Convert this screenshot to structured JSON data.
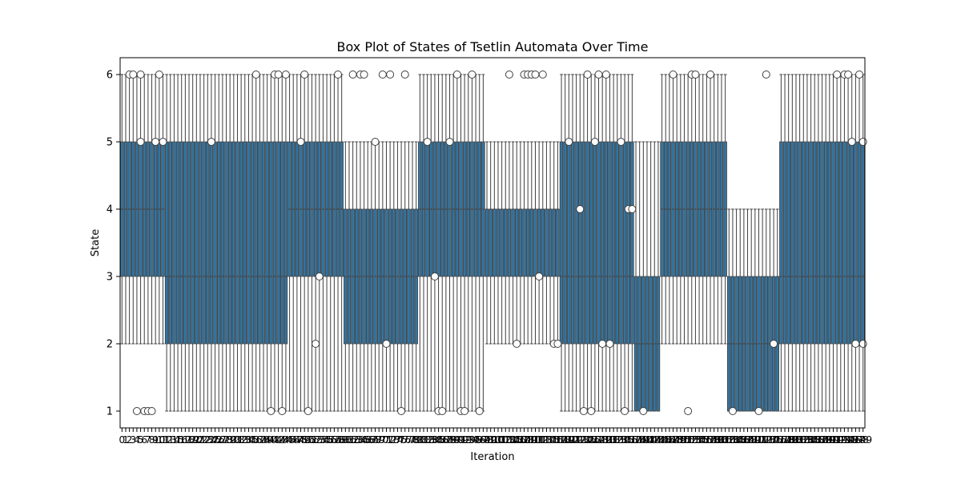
{
  "chart_data": {
    "type": "box",
    "title": "Box Plot of States of Tsetlin Automata Over Time",
    "xlabel": "Iteration",
    "ylabel": "State",
    "ylim": [
      0.75,
      6.25
    ],
    "yticks": [
      1,
      2,
      3,
      4,
      5,
      6
    ],
    "xticks_note": "one tick per iteration, labels 0..199 overprinted",
    "grid": false,
    "colors": {
      "box_fill": "#3274a1",
      "edge": "#3f3f3f",
      "outlier_fill": "#ffffff"
    },
    "box_segments": [
      {
        "from": 0,
        "to": 12,
        "q1": 3,
        "med": 4,
        "q3": 5,
        "lo": 2,
        "hi": 6
      },
      {
        "from": 12,
        "to": 45,
        "q1": 2,
        "med": 3,
        "q3": 5,
        "lo": 1,
        "hi": 6
      },
      {
        "from": 45,
        "to": 60,
        "q1": 3,
        "med": 4,
        "q3": 5,
        "lo": 1,
        "hi": 6
      },
      {
        "from": 60,
        "to": 80,
        "q1": 2,
        "med": 3,
        "q3": 4,
        "lo": 1,
        "hi": 5
      },
      {
        "from": 80,
        "to": 98,
        "q1": 3,
        "med": 4,
        "q3": 5,
        "lo": 1,
        "hi": 6
      },
      {
        "from": 98,
        "to": 118,
        "q1": 3,
        "med": 4,
        "q3": 4,
        "lo": 2,
        "hi": 5
      },
      {
        "from": 118,
        "to": 138,
        "q1": 2,
        "med": 3,
        "q3": 5,
        "lo": 1,
        "hi": 6
      },
      {
        "from": 138,
        "to": 145,
        "q1": 1,
        "med": 2,
        "q3": 3,
        "lo": 1,
        "hi": 5
      },
      {
        "from": 145,
        "to": 163,
        "q1": 3,
        "med": 4,
        "q3": 5,
        "lo": 2,
        "hi": 6
      },
      {
        "from": 163,
        "to": 177,
        "q1": 1,
        "med": 2,
        "q3": 3,
        "lo": 1,
        "hi": 4
      },
      {
        "from": 177,
        "to": 200,
        "q1": 2,
        "med": 3,
        "q3": 5,
        "lo": 1,
        "hi": 6
      }
    ],
    "outliers": [
      [
        2,
        6
      ],
      [
        3,
        6
      ],
      [
        5,
        5
      ],
      [
        4,
        1
      ],
      [
        5,
        6
      ],
      [
        6,
        1
      ],
      [
        7,
        1
      ],
      [
        8,
        1
      ],
      [
        9,
        5
      ],
      [
        10,
        6
      ],
      [
        11,
        5
      ],
      [
        24,
        5
      ],
      [
        36,
        6
      ],
      [
        40,
        1
      ],
      [
        41,
        6
      ],
      [
        42,
        6
      ],
      [
        43,
        1
      ],
      [
        44,
        6
      ],
      [
        48,
        5
      ],
      [
        49,
        6
      ],
      [
        50,
        1
      ],
      [
        52,
        2
      ],
      [
        53,
        3
      ],
      [
        58,
        6
      ],
      [
        62,
        6
      ],
      [
        64,
        6
      ],
      [
        65,
        6
      ],
      [
        68,
        5
      ],
      [
        70,
        6
      ],
      [
        71,
        2
      ],
      [
        72,
        6
      ],
      [
        75,
        1
      ],
      [
        76,
        6
      ],
      [
        82,
        5
      ],
      [
        84,
        3
      ],
      [
        85,
        1
      ],
      [
        86,
        1
      ],
      [
        88,
        5
      ],
      [
        90,
        6
      ],
      [
        91,
        1
      ],
      [
        92,
        1
      ],
      [
        94,
        6
      ],
      [
        96,
        1
      ],
      [
        104,
        6
      ],
      [
        106,
        2
      ],
      [
        108,
        6
      ],
      [
        109,
        6
      ],
      [
        110,
        6
      ],
      [
        111,
        6
      ],
      [
        112,
        3
      ],
      [
        113,
        6
      ],
      [
        116,
        2
      ],
      [
        117,
        2
      ],
      [
        120,
        5
      ],
      [
        123,
        4
      ],
      [
        124,
        1
      ],
      [
        125,
        6
      ],
      [
        126,
        1
      ],
      [
        127,
        5
      ],
      [
        128,
        6
      ],
      [
        129,
        2
      ],
      [
        130,
        6
      ],
      [
        131,
        2
      ],
      [
        134,
        5
      ],
      [
        135,
        1
      ],
      [
        136,
        4
      ],
      [
        137,
        4
      ],
      [
        140,
        1
      ],
      [
        148,
        6
      ],
      [
        152,
        1
      ],
      [
        153,
        6
      ],
      [
        154,
        6
      ],
      [
        158,
        6
      ],
      [
        164,
        1
      ],
      [
        171,
        1
      ],
      [
        173,
        6
      ],
      [
        175,
        2
      ],
      [
        192,
        6
      ],
      [
        194,
        6
      ],
      [
        195,
        6
      ],
      [
        196,
        5
      ],
      [
        197,
        2
      ],
      [
        198,
        6
      ],
      [
        199,
        5
      ],
      [
        199,
        2
      ]
    ]
  }
}
